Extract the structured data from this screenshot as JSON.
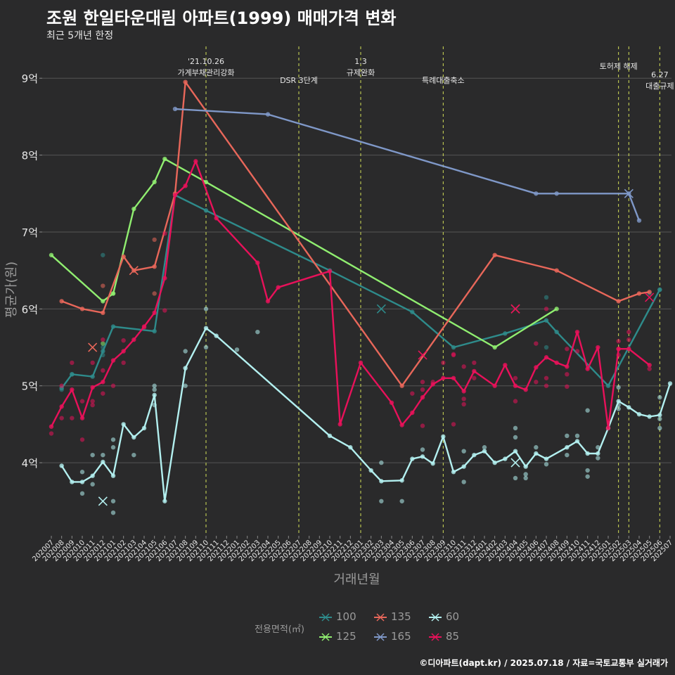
{
  "title": "조원 한일타운대림 아파트(1999) 매매가격 변화",
  "subtitle": "최근 5개년 한정",
  "caption": "©디아파트(dapt.kr) / 2025.07.18 / 자료=국토교통부 실거래가",
  "chart_data": {
    "type": "line",
    "xlabel": "거래년월",
    "ylabel": "평균가(원)",
    "ylim": [
      3.05,
      9.45
    ],
    "ytick_values": [
      4,
      5,
      6,
      7,
      8,
      9
    ],
    "ytick_labels": [
      "4억",
      "5억",
      "6억",
      "7억",
      "8억",
      "9억"
    ],
    "x": [
      "202007",
      "202008",
      "202009",
      "202010",
      "202011",
      "202012",
      "202101",
      "202102",
      "202103",
      "202104",
      "202105",
      "202106",
      "202107",
      "202108",
      "202109",
      "202110",
      "202111",
      "202112",
      "202201",
      "202202",
      "202203",
      "202204",
      "202205",
      "202206",
      "202207",
      "202208",
      "202209",
      "202210",
      "202211",
      "202212",
      "202301",
      "202302",
      "202303",
      "202304",
      "202305",
      "202306",
      "202307",
      "202308",
      "202309",
      "202310",
      "202311",
      "202312",
      "202401",
      "202402",
      "202403",
      "202404",
      "202405",
      "202406",
      "202407",
      "202408",
      "202409",
      "202410",
      "202411",
      "202412",
      "202501",
      "202502",
      "202503",
      "202504",
      "202505",
      "202506",
      "202507"
    ],
    "grid": true,
    "legend_title": "전용면적(㎡)",
    "legend_placement": "bottom",
    "annotations": [
      {
        "x": "202110",
        "label": "'21.10.26\n가계부채관리강화"
      },
      {
        "x": "202207",
        "label": "DSR 3단계"
      },
      {
        "x": "202301",
        "label": "1.3\n규제완화"
      },
      {
        "x": "202309",
        "label": "특례대출축소"
      },
      {
        "x": "202502",
        "label": "토허제 해제"
      },
      {
        "x": "202503",
        "label": ""
      },
      {
        "x": "202506",
        "label": "6.27\n대출규제"
      }
    ],
    "series": [
      {
        "name": "100",
        "color": "#2e8b8b",
        "points": [
          [
            "202008",
            4.97
          ],
          [
            "202009",
            5.15
          ],
          [
            "202011",
            5.12
          ],
          [
            "202012",
            5.45
          ],
          [
            "202101",
            5.77
          ],
          [
            "202105",
            5.71
          ],
          [
            "202107",
            7.48
          ],
          [
            "202110",
            7.28
          ],
          [
            "202210",
            6.5
          ],
          [
            "202306",
            5.96
          ],
          [
            "202310",
            5.5
          ],
          [
            "202403",
            5.68
          ],
          [
            "202407",
            5.85
          ],
          [
            "202408",
            5.7
          ],
          [
            "202501",
            5.0
          ],
          [
            "202506",
            6.25
          ]
        ],
        "scatter": [
          [
            "202008",
            4.95
          ],
          [
            "202009",
            5.15
          ],
          [
            "202012",
            5.4
          ],
          [
            "202012",
            6.7
          ],
          [
            "202012",
            5.5
          ],
          [
            "202407",
            6.15
          ],
          [
            "202407",
            5.5
          ],
          [
            "202505",
            6.2
          ],
          [
            "202506",
            6.25
          ]
        ],
        "cancelled": [
          [
            "202303",
            6.0
          ]
        ]
      },
      {
        "name": "125",
        "color": "#90ee70",
        "points": [
          [
            "202007",
            6.7
          ],
          [
            "202012",
            6.1
          ],
          [
            "202101",
            6.2
          ],
          [
            "202103",
            7.3
          ],
          [
            "202105",
            7.65
          ],
          [
            "202106",
            7.95
          ],
          [
            "202110",
            7.65
          ],
          [
            "202402",
            5.5
          ],
          [
            "202408",
            6.0
          ]
        ],
        "scatter": [
          [
            "202012",
            5.55
          ],
          [
            "202101",
            6.2
          ]
        ],
        "cancelled": []
      },
      {
        "name": "135",
        "color": "#e8675a",
        "points": [
          [
            "202008",
            6.1
          ],
          [
            "202010",
            6.0
          ],
          [
            "202012",
            5.95
          ],
          [
            "202102",
            6.68
          ],
          [
            "202103",
            6.5
          ],
          [
            "202105",
            6.55
          ],
          [
            "202107",
            7.5
          ],
          [
            "202108",
            8.95
          ],
          [
            "202305",
            5.0
          ],
          [
            "202402",
            6.7
          ],
          [
            "202408",
            6.5
          ],
          [
            "202502",
            6.1
          ],
          [
            "202504",
            6.2
          ],
          [
            "202505",
            6.22
          ]
        ],
        "scatter": [
          [
            "202012",
            6.3
          ],
          [
            "202105",
            6.9
          ],
          [
            "202105",
            6.2
          ]
        ],
        "cancelled": [
          [
            "202011",
            5.5
          ],
          [
            "202103",
            6.5
          ],
          [
            "202404",
            6.0
          ]
        ]
      },
      {
        "name": "165",
        "color": "#7f98c8",
        "points": [
          [
            "202107",
            8.6
          ],
          [
            "202204",
            8.53
          ],
          [
            "202406",
            7.5
          ],
          [
            "202408",
            7.5
          ],
          [
            "202503",
            7.5
          ],
          [
            "202504",
            7.15
          ]
        ],
        "scatter": [],
        "cancelled": [
          [
            "202503",
            7.5
          ]
        ]
      },
      {
        "name": "60",
        "color": "#b3f0f0",
        "points": [
          [
            "202008",
            3.96
          ],
          [
            "202009",
            3.75
          ],
          [
            "202010",
            3.75
          ],
          [
            "202011",
            3.83
          ],
          [
            "202012",
            4.01
          ],
          [
            "202101",
            3.83
          ],
          [
            "202102",
            4.5
          ],
          [
            "202103",
            4.33
          ],
          [
            "202104",
            4.45
          ],
          [
            "202105",
            4.88
          ],
          [
            "202106",
            3.5
          ],
          [
            "202108",
            5.23
          ],
          [
            "202110",
            5.75
          ],
          [
            "202111",
            5.65
          ],
          [
            "202210",
            4.35
          ],
          [
            "202212",
            4.2
          ],
          [
            "202302",
            3.9
          ],
          [
            "202303",
            3.76
          ],
          [
            "202305",
            3.77
          ],
          [
            "202306",
            4.05
          ],
          [
            "202307",
            4.08
          ],
          [
            "202308",
            3.99
          ],
          [
            "202309",
            4.34
          ],
          [
            "202310",
            3.88
          ],
          [
            "202311",
            3.95
          ],
          [
            "202312",
            4.1
          ],
          [
            "202401",
            4.15
          ],
          [
            "202402",
            4.0
          ],
          [
            "202403",
            4.05
          ],
          [
            "202404",
            4.15
          ],
          [
            "202405",
            3.95
          ],
          [
            "202406",
            4.12
          ],
          [
            "202407",
            4.05
          ],
          [
            "202409",
            4.2
          ],
          [
            "202410",
            4.28
          ],
          [
            "202411",
            4.12
          ],
          [
            "202412",
            4.12
          ],
          [
            "202501",
            4.45
          ],
          [
            "202502",
            4.8
          ],
          [
            "202503",
            4.72
          ],
          [
            "202504",
            4.63
          ],
          [
            "202505",
            4.6
          ],
          [
            "202506",
            4.62
          ],
          [
            "202507",
            5.03
          ]
        ],
        "scatter": [
          [
            "202010",
            3.88
          ],
          [
            "202010",
            3.6
          ],
          [
            "202011",
            4.1
          ],
          [
            "202011",
            3.72
          ],
          [
            "202012",
            4.1
          ],
          [
            "202101",
            4.3
          ],
          [
            "202101",
            3.5
          ],
          [
            "202101",
            3.35
          ],
          [
            "202101",
            4.2
          ],
          [
            "202103",
            4.1
          ],
          [
            "202105",
            5.0
          ],
          [
            "202105",
            4.95
          ],
          [
            "202105",
            4.75
          ],
          [
            "202108",
            5.45
          ],
          [
            "202108",
            5.0
          ],
          [
            "202110",
            6.0
          ],
          [
            "202110",
            5.5
          ],
          [
            "202201",
            5.47
          ],
          [
            "202203",
            5.7
          ],
          [
            "202303",
            4.0
          ],
          [
            "202303",
            3.5
          ],
          [
            "202305",
            3.5
          ],
          [
            "202307",
            4.17
          ],
          [
            "202311",
            3.75
          ],
          [
            "202311",
            4.15
          ],
          [
            "202401",
            4.2
          ],
          [
            "202404",
            4.45
          ],
          [
            "202404",
            4.33
          ],
          [
            "202404",
            3.8
          ],
          [
            "202405",
            3.85
          ],
          [
            "202405",
            3.8
          ],
          [
            "202406",
            4.2
          ],
          [
            "202407",
            3.98
          ],
          [
            "202409",
            4.35
          ],
          [
            "202409",
            4.1
          ],
          [
            "202410",
            4.35
          ],
          [
            "202411",
            4.68
          ],
          [
            "202411",
            3.9
          ],
          [
            "202411",
            3.82
          ],
          [
            "202412",
            4.2
          ],
          [
            "202412",
            4.06
          ],
          [
            "202502",
            4.75
          ],
          [
            "202502",
            4.7
          ],
          [
            "202502",
            4.98
          ],
          [
            "202506",
            4.85
          ],
          [
            "202506",
            4.45
          ],
          [
            "202506",
            4.57
          ]
        ],
        "cancelled": [
          [
            "202012",
            3.5
          ],
          [
            "202404",
            4.0
          ]
        ]
      },
      {
        "name": "85",
        "color": "#e8115a",
        "points": [
          [
            "202007",
            4.47
          ],
          [
            "202008",
            4.73
          ],
          [
            "202009",
            4.95
          ],
          [
            "202010",
            4.58
          ],
          [
            "202011",
            4.98
          ],
          [
            "202012",
            5.05
          ],
          [
            "202101",
            5.33
          ],
          [
            "202102",
            5.45
          ],
          [
            "202103",
            5.6
          ],
          [
            "202104",
            5.77
          ],
          [
            "202105",
            5.95
          ],
          [
            "202106",
            6.4
          ],
          [
            "202107",
            7.48
          ],
          [
            "202108",
            7.6
          ],
          [
            "202109",
            7.92
          ],
          [
            "202111",
            7.18
          ],
          [
            "202203",
            6.6
          ],
          [
            "202204",
            6.1
          ],
          [
            "202205",
            6.28
          ],
          [
            "202210",
            6.49
          ],
          [
            "202211",
            4.5
          ],
          [
            "202301",
            5.3
          ],
          [
            "202304",
            4.78
          ],
          [
            "202305",
            4.49
          ],
          [
            "202306",
            4.65
          ],
          [
            "202307",
            4.85
          ],
          [
            "202308",
            5.02
          ],
          [
            "202309",
            5.1
          ],
          [
            "202310",
            5.1
          ],
          [
            "202311",
            4.93
          ],
          [
            "202312",
            5.19
          ],
          [
            "202402",
            5.0
          ],
          [
            "202403",
            5.27
          ],
          [
            "202404",
            5.0
          ],
          [
            "202405",
            4.95
          ],
          [
            "202406",
            5.24
          ],
          [
            "202407",
            5.37
          ],
          [
            "202408",
            5.3
          ],
          [
            "202409",
            5.25
          ],
          [
            "202410",
            5.7
          ],
          [
            "202411",
            5.22
          ],
          [
            "202412",
            5.5
          ],
          [
            "202501",
            4.45
          ],
          [
            "202502",
            5.48
          ],
          [
            "202503",
            5.48
          ],
          [
            "202505",
            5.27
          ]
        ],
        "scatter": [
          [
            "202007",
            4.38
          ],
          [
            "202008",
            4.58
          ],
          [
            "202008",
            5.0
          ],
          [
            "202009",
            5.3
          ],
          [
            "202009",
            4.58
          ],
          [
            "202010",
            4.8
          ],
          [
            "202010",
            4.3
          ],
          [
            "202011",
            5.3
          ],
          [
            "202011",
            4.8
          ],
          [
            "202011",
            4.75
          ],
          [
            "202012",
            5.6
          ],
          [
            "202012",
            5.2
          ],
          [
            "202012",
            4.9
          ],
          [
            "202101",
            5.0
          ],
          [
            "202102",
            5.59
          ],
          [
            "202102",
            5.3
          ],
          [
            "202104",
            5.76
          ],
          [
            "202106",
            6.98
          ],
          [
            "202106",
            5.98
          ],
          [
            "202306",
            4.9
          ],
          [
            "202307",
            5.05
          ],
          [
            "202307",
            4.95
          ],
          [
            "202307",
            4.48
          ],
          [
            "202308",
            5.05
          ],
          [
            "202309",
            5.3
          ],
          [
            "202310",
            5.4
          ],
          [
            "202310",
            5.41
          ],
          [
            "202310",
            4.5
          ],
          [
            "202311",
            5.25
          ],
          [
            "202311",
            4.83
          ],
          [
            "202311",
            4.76
          ],
          [
            "202312",
            5.3
          ],
          [
            "202312",
            5.1
          ],
          [
            "202404",
            4.8
          ],
          [
            "202404",
            5.1
          ],
          [
            "202406",
            5.55
          ],
          [
            "202406",
            5.05
          ],
          [
            "202407",
            5.1
          ],
          [
            "202407",
            5.0
          ],
          [
            "202407",
            6.0
          ],
          [
            "202409",
            5.48
          ],
          [
            "202409",
            5.15
          ],
          [
            "202409",
            4.99
          ],
          [
            "202410",
            5.45
          ],
          [
            "202502",
            5.58
          ],
          [
            "202502",
            5.48
          ],
          [
            "202502",
            5.4
          ],
          [
            "202503",
            5.7
          ],
          [
            "202503",
            5.6
          ],
          [
            "202505",
            5.22
          ]
        ],
        "cancelled": [
          [
            "202307",
            5.4
          ],
          [
            "202404",
            6.0
          ],
          [
            "202505",
            6.15
          ]
        ]
      }
    ]
  }
}
